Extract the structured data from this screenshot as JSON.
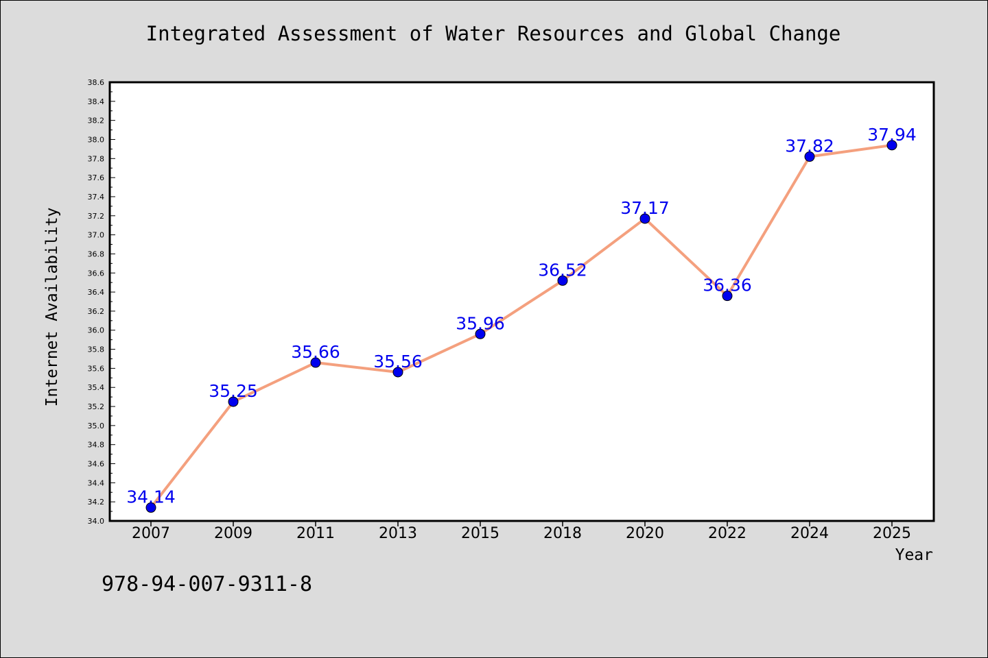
{
  "title": "Integrated Assessment of Water Resources and Global Change",
  "footnote": "978-94-007-9311-8",
  "colors": {
    "background": "#dcdcdc",
    "plot_background": "#ffffff",
    "line": "#f4a07e",
    "marker": "#0000ee",
    "label": "#0000ee"
  },
  "chart_data": {
    "type": "line",
    "title": "Integrated Assessment of Water Resources and Global Change",
    "xlabel": "Year",
    "ylabel": "Internet Availability",
    "categories": [
      "2007",
      "2009",
      "2011",
      "2013",
      "2015",
      "2018",
      "2020",
      "2022",
      "2024",
      "2025"
    ],
    "values": [
      34.14,
      35.25,
      35.66,
      35.56,
      35.96,
      36.52,
      37.17,
      36.36,
      37.82,
      37.94
    ],
    "data_labels": [
      "34.14",
      "35.25",
      "35.66",
      "35.56",
      "35.96",
      "36.52",
      "37.17",
      "36.36",
      "37.82",
      "37.94"
    ],
    "ylim": [
      34.0,
      38.6
    ],
    "yticks": [
      "34.0",
      "34.2",
      "34.4",
      "34.6",
      "34.8",
      "35.0",
      "35.2",
      "35.4",
      "35.6",
      "35.8",
      "36.0",
      "36.2",
      "36.4",
      "36.6",
      "36.8",
      "37.0",
      "37.2",
      "37.4",
      "37.6",
      "37.8",
      "38.0",
      "38.2",
      "38.4",
      "38.6"
    ],
    "grid": false,
    "legend": "none"
  }
}
